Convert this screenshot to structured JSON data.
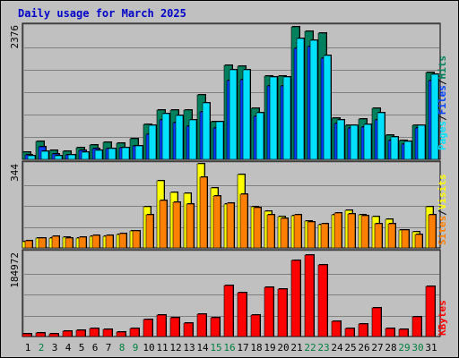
{
  "title": "Daily usage for March 2025",
  "colors": {
    "hits": "#00805c",
    "files": "#0040ff",
    "pages": "#00e0ff",
    "visits": "#ffff00",
    "sites": "#ff8000",
    "kbytes": "#ff0000",
    "weekday_label": "#000000",
    "weekend_label": "#008040",
    "background": "#c0c0c0"
  },
  "chart_data": [
    {
      "type": "bar",
      "title": "Daily usage for March 2025",
      "categories": [
        "1",
        "2",
        "3",
        "4",
        "5",
        "6",
        "7",
        "8",
        "9",
        "10",
        "11",
        "12",
        "13",
        "14",
        "15",
        "16",
        "17",
        "18",
        "19",
        "20",
        "21",
        "22",
        "23",
        "24",
        "25",
        "26",
        "27",
        "28",
        "29",
        "30",
        "31"
      ],
      "weekend_days": [
        "2",
        "8",
        "9",
        "15",
        "16",
        "22",
        "23",
        "29",
        "30"
      ],
      "ymax_label": "2376",
      "ylim": [
        0,
        2376
      ],
      "side_labels": [
        "Hits",
        "/",
        "Files",
        "/",
        "Pages"
      ],
      "series": [
        {
          "name": "Hits",
          "values": [
            120,
            310,
            160,
            150,
            210,
            250,
            300,
            280,
            370,
            620,
            870,
            870,
            870,
            1140,
            660,
            1670,
            1650,
            900,
            1470,
            1470,
            2350,
            2260,
            2240,
            730,
            600,
            720,
            900,
            420,
            330,
            600,
            1540
          ]
        },
        {
          "name": "Files",
          "values": [
            80,
            220,
            90,
            80,
            160,
            190,
            190,
            210,
            240,
            450,
            690,
            650,
            580,
            840,
            560,
            1400,
            1410,
            760,
            1300,
            1300,
            1960,
            2000,
            1790,
            640,
            550,
            570,
            690,
            340,
            270,
            550,
            1400
          ]
        },
        {
          "name": "Pages",
          "values": [
            65,
            140,
            70,
            75,
            130,
            165,
            190,
            200,
            230,
            600,
            800,
            770,
            690,
            1000,
            670,
            1580,
            1580,
            830,
            1460,
            1450,
            2140,
            2100,
            1830,
            690,
            600,
            620,
            830,
            400,
            310,
            600,
            1500
          ]
        }
      ]
    },
    {
      "type": "bar",
      "categories": [
        "1",
        "2",
        "3",
        "4",
        "5",
        "6",
        "7",
        "8",
        "9",
        "10",
        "11",
        "12",
        "13",
        "14",
        "15",
        "16",
        "17",
        "18",
        "19",
        "20",
        "21",
        "22",
        "23",
        "24",
        "25",
        "26",
        "27",
        "28",
        "29",
        "30",
        "31"
      ],
      "ymax_label": "344",
      "ylim": [
        0,
        344
      ],
      "side_labels": [
        "Visits",
        "/",
        "Sites"
      ],
      "series": [
        {
          "name": "Visits",
          "values": [
            24,
            40,
            40,
            44,
            40,
            46,
            48,
            55,
            70,
            170,
            276,
            228,
            224,
            344,
            244,
            180,
            300,
            170,
            150,
            128,
            130,
            110,
            94,
            134,
            154,
            134,
            128,
            116,
            74,
            66,
            170
          ]
        },
        {
          "name": "Sites",
          "values": [
            30,
            40,
            46,
            40,
            44,
            52,
            50,
            58,
            70,
            136,
            194,
            186,
            180,
            288,
            212,
            182,
            220,
            166,
            134,
            122,
            134,
            106,
            98,
            144,
            140,
            130,
            100,
            100,
            74,
            56,
            134
          ]
        }
      ]
    },
    {
      "type": "bar",
      "categories": [
        "1",
        "2",
        "3",
        "4",
        "5",
        "6",
        "7",
        "8",
        "9",
        "10",
        "11",
        "12",
        "13",
        "14",
        "15",
        "16",
        "17",
        "18",
        "19",
        "20",
        "21",
        "22",
        "23",
        "24",
        "25",
        "26",
        "27",
        "28",
        "29",
        "30",
        "31"
      ],
      "ymax_label": "184972",
      "ylim": [
        0,
        184972
      ],
      "side_labels": [
        "KBytes"
      ],
      "series": [
        {
          "name": "KBytes",
          "values": [
            5000,
            8000,
            5000,
            11000,
            13000,
            18000,
            15000,
            9000,
            17000,
            38000,
            47000,
            42000,
            30000,
            50000,
            42000,
            112000,
            97000,
            47000,
            108000,
            105000,
            168000,
            180000,
            158000,
            33000,
            18000,
            28000,
            63000,
            18000,
            15000,
            43000,
            110000
          ]
        }
      ]
    }
  ]
}
